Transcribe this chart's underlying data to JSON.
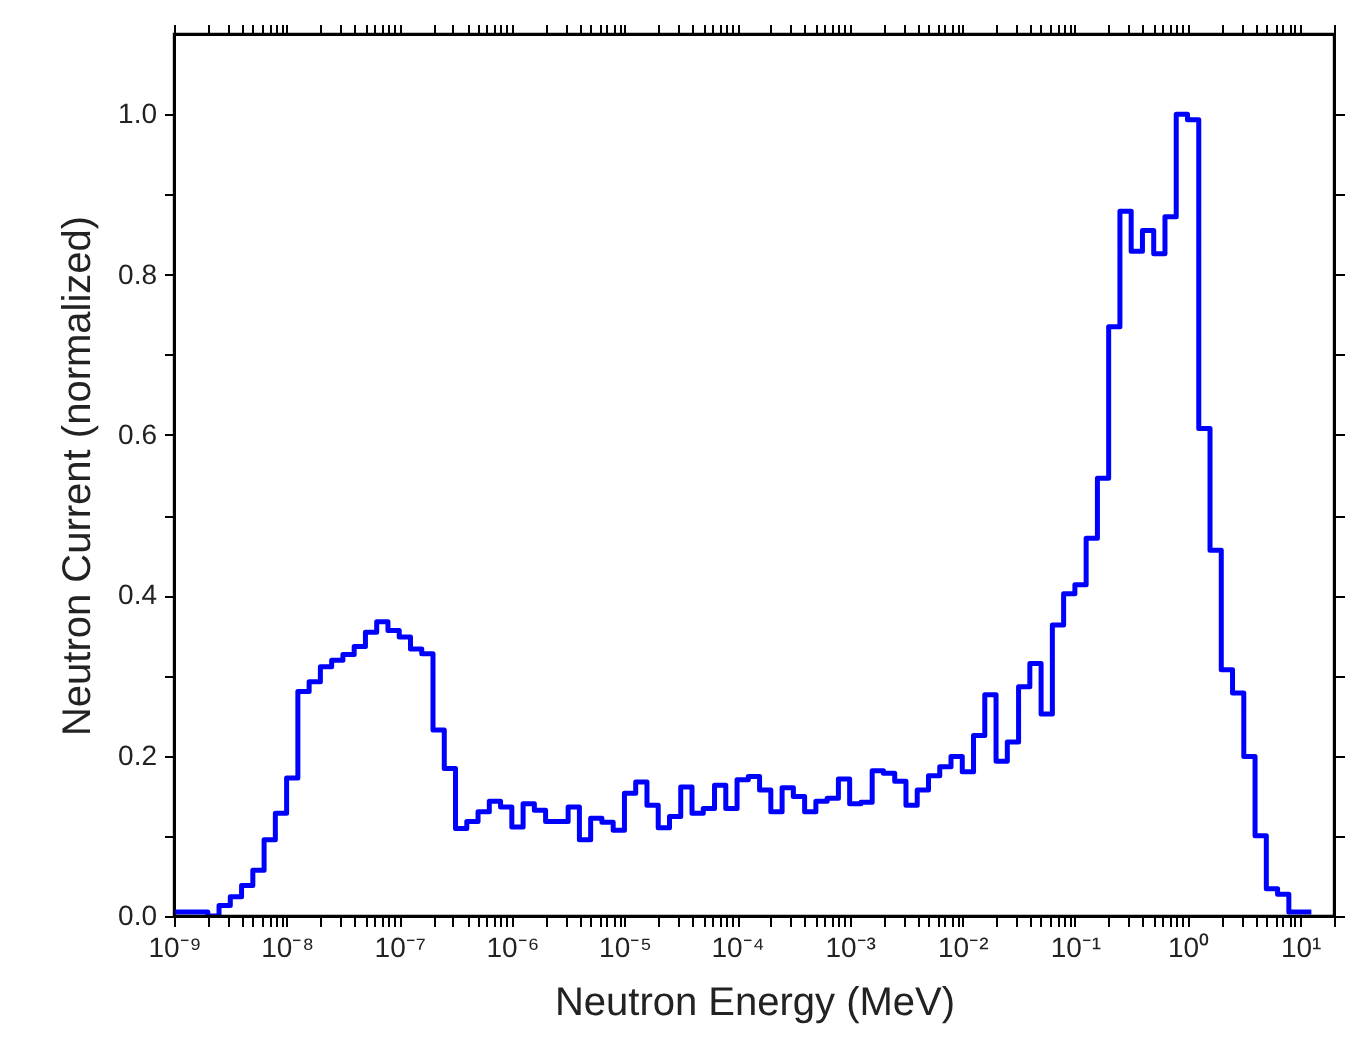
{
  "chart_data": {
    "type": "histogram",
    "xlabel": "Neutron Energy (MeV)",
    "ylabel": "Neutron Current (normalized)",
    "log": "x",
    "grid": false,
    "color": "#0000ff",
    "bins": [
      1e-09,
      1.259e-09,
      1.585e-09,
      1.995e-09,
      2.512e-09,
      3.162e-09,
      3.981e-09,
      5.012e-09,
      6.31e-09,
      7.943e-09,
      1e-08,
      1.259e-08,
      1.585e-08,
      1.995e-08,
      2.512e-08,
      3.162e-08,
      3.981e-08,
      5.012e-08,
      6.31e-08,
      7.943e-08,
      1e-07,
      1.259e-07,
      1.585e-07,
      1.995e-07,
      2.512e-07,
      3.162e-07,
      3.981e-07,
      5.012e-07,
      6.31e-07,
      7.943e-07,
      1e-06,
      1.259e-06,
      1.585e-06,
      1.995e-06,
      2.512e-06,
      3.162e-06,
      3.981e-06,
      5.012e-06,
      6.31e-06,
      7.943e-06,
      1e-05,
      1.259e-05,
      1.585e-05,
      1.995e-05,
      2.512e-05,
      3.162e-05,
      3.981e-05,
      5.012e-05,
      6.31e-05,
      7.943e-05,
      0.0001,
      0.0001259,
      0.0001585,
      0.0001995,
      0.0002512,
      0.0003162,
      0.0003981,
      0.0005012,
      0.000631,
      0.0007943,
      0.001,
      0.001259,
      0.001585,
      0.001995,
      0.002512,
      0.003162,
      0.003981,
      0.005012,
      0.00631,
      0.007943,
      0.01,
      0.01259,
      0.01585,
      0.01995,
      0.02512,
      0.03162,
      0.03981,
      0.05012,
      0.0631,
      0.07943,
      0.1,
      0.1259,
      0.1585,
      0.1995,
      0.2512,
      0.3162,
      0.3981,
      0.5012,
      0.631,
      0.7943,
      1,
      1.259,
      1.585,
      1.995,
      2.512,
      3.162,
      3.981,
      5.012,
      6.31,
      7.943,
      10,
      12.59
    ],
    "values": [
      0.005,
      0.005,
      0.005,
      0,
      0.013,
      0.024,
      0.038,
      0.057,
      0.095,
      0.128,
      0.172,
      0.28,
      0.292,
      0.311,
      0.319,
      0.326,
      0.336,
      0.354,
      0.367,
      0.356,
      0.348,
      0.333,
      0.327,
      0.232,
      0.184,
      0.109,
      0.118,
      0.13,
      0.143,
      0.136,
      0.111,
      0.14,
      0.132,
      0.118,
      0.118,
      0.136,
      0.095,
      0.122,
      0.117,
      0.107,
      0.153,
      0.167,
      0.138,
      0.11,
      0.124,
      0.161,
      0.128,
      0.134,
      0.163,
      0.134,
      0.17,
      0.174,
      0.157,
      0.13,
      0.16,
      0.149,
      0.13,
      0.143,
      0.147,
      0.171,
      0.14,
      0.142,
      0.181,
      0.178,
      0.168,
      0.138,
      0.157,
      0.175,
      0.186,
      0.199,
      0.18,
      0.225,
      0.276,
      0.193,
      0.217,
      0.286,
      0.315,
      0.252,
      0.363,
      0.402,
      0.413,
      0.471,
      0.546,
      0.735,
      0.879,
      0.829,
      0.855,
      0.826,
      0.872,
      1.0,
      0.993,
      0.608,
      0.456,
      0.307,
      0.278,
      0.199,
      0.1,
      0.034,
      0.027,
      0.005,
      0.005
    ],
    "xlim": [
      1e-09,
      20
    ],
    "ylim": [
      0,
      1.1
    ],
    "xticks": [
      {
        "value": 1e-09,
        "label": "10⁻⁹"
      },
      {
        "value": 2e-09,
        "label": null
      },
      {
        "value": 3e-09,
        "label": null
      },
      {
        "value": 4e-09,
        "label": null
      },
      {
        "value": 5e-09,
        "label": null
      },
      {
        "value": 6e-09,
        "label": null
      },
      {
        "value": 7e-09,
        "label": null
      },
      {
        "value": 8e-09,
        "label": null
      },
      {
        "value": 9e-09,
        "label": null
      },
      {
        "value": 1e-08,
        "label": "10⁻⁸"
      },
      {
        "value": 2e-08,
        "label": null
      },
      {
        "value": 3e-08,
        "label": null
      },
      {
        "value": 4e-08,
        "label": null
      },
      {
        "value": 5e-08,
        "label": null
      },
      {
        "value": 6e-08,
        "label": null
      },
      {
        "value": 7e-08,
        "label": null
      },
      {
        "value": 8e-08,
        "label": null
      },
      {
        "value": 9e-08,
        "label": null
      },
      {
        "value": 1e-07,
        "label": "10⁻⁷"
      },
      {
        "value": 2e-07,
        "label": null
      },
      {
        "value": 3e-07,
        "label": null
      },
      {
        "value": 4e-07,
        "label": null
      },
      {
        "value": 5e-07,
        "label": null
      },
      {
        "value": 6e-07,
        "label": null
      },
      {
        "value": 7e-07,
        "label": null
      },
      {
        "value": 8e-07,
        "label": null
      },
      {
        "value": 9e-07,
        "label": null
      },
      {
        "value": 1e-06,
        "label": "10⁻⁶"
      },
      {
        "value": 2e-06,
        "label": null
      },
      {
        "value": 3e-06,
        "label": null
      },
      {
        "value": 4e-06,
        "label": null
      },
      {
        "value": 5e-06,
        "label": null
      },
      {
        "value": 6e-06,
        "label": null
      },
      {
        "value": 7e-06,
        "label": null
      },
      {
        "value": 8e-06,
        "label": null
      },
      {
        "value": 9e-06,
        "label": null
      },
      {
        "value": 1e-05,
        "label": "10⁻⁵"
      },
      {
        "value": 2e-05,
        "label": null
      },
      {
        "value": 3e-05,
        "label": null
      },
      {
        "value": 4e-05,
        "label": null
      },
      {
        "value": 5e-05,
        "label": null
      },
      {
        "value": 6e-05,
        "label": null
      },
      {
        "value": 7e-05,
        "label": null
      },
      {
        "value": 8e-05,
        "label": null
      },
      {
        "value": 9e-05,
        "label": null
      },
      {
        "value": 0.0001,
        "label": "10⁻⁴"
      },
      {
        "value": 0.0002,
        "label": null
      },
      {
        "value": 0.0003,
        "label": null
      },
      {
        "value": 0.0004,
        "label": null
      },
      {
        "value": 0.0005,
        "label": null
      },
      {
        "value": 0.0006,
        "label": null
      },
      {
        "value": 0.0007,
        "label": null
      },
      {
        "value": 0.0008,
        "label": null
      },
      {
        "value": 0.0009,
        "label": null
      },
      {
        "value": 0.001,
        "label": "10⁻³"
      },
      {
        "value": 0.002,
        "label": null
      },
      {
        "value": 0.003,
        "label": null
      },
      {
        "value": 0.004,
        "label": null
      },
      {
        "value": 0.005,
        "label": null
      },
      {
        "value": 0.006,
        "label": null
      },
      {
        "value": 0.007,
        "label": null
      },
      {
        "value": 0.008,
        "label": null
      },
      {
        "value": 0.009,
        "label": null
      },
      {
        "value": 0.01,
        "label": "10⁻²"
      },
      {
        "value": 0.02,
        "label": null
      },
      {
        "value": 0.03,
        "label": null
      },
      {
        "value": 0.04,
        "label": null
      },
      {
        "value": 0.05,
        "label": null
      },
      {
        "value": 0.06,
        "label": null
      },
      {
        "value": 0.07,
        "label": null
      },
      {
        "value": 0.08,
        "label": null
      },
      {
        "value": 0.09,
        "label": null
      },
      {
        "value": 0.1,
        "label": "10⁻¹"
      },
      {
        "value": 0.2,
        "label": null
      },
      {
        "value": 0.3,
        "label": null
      },
      {
        "value": 0.4,
        "label": null
      },
      {
        "value": 0.5,
        "label": null
      },
      {
        "value": 0.6,
        "label": null
      },
      {
        "value": 0.7,
        "label": null
      },
      {
        "value": 0.8,
        "label": null
      },
      {
        "value": 0.9,
        "label": null
      },
      {
        "value": 1,
        "label": "10⁰"
      },
      {
        "value": 2,
        "label": null
      },
      {
        "value": 3,
        "label": null
      },
      {
        "value": 4,
        "label": null
      },
      {
        "value": 5,
        "label": null
      },
      {
        "value": 6,
        "label": null
      },
      {
        "value": 7,
        "label": null
      },
      {
        "value": 8,
        "label": null
      },
      {
        "value": 9,
        "label": null
      },
      {
        "value": 10,
        "label": "10¹"
      },
      {
        "value": 20,
        "label": null
      }
    ],
    "yticks": [
      {
        "value": 0,
        "label": "0.0"
      },
      {
        "value": 0.1,
        "label": null
      },
      0.2,
      {
        "value": 0.3,
        "label": null
      },
      0.4,
      {
        "value": 0.5,
        "label": null
      },
      0.6,
      {
        "value": 0.7,
        "label": null
      },
      0.8,
      {
        "value": 0.9,
        "label": null
      },
      {
        "value": 1.0,
        "label": "1.0"
      }
    ]
  }
}
